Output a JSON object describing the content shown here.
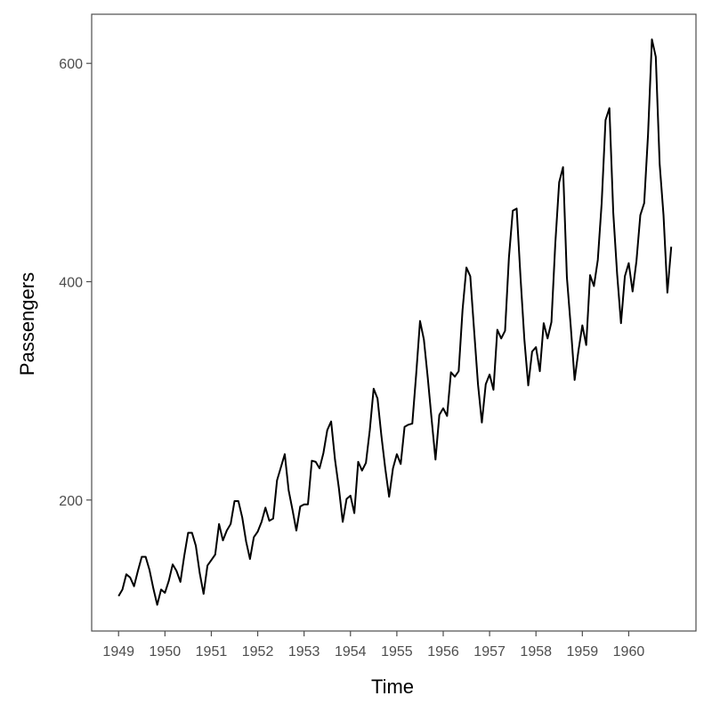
{
  "chart_data": {
    "type": "line",
    "title": "",
    "xlabel": "Time",
    "ylabel": "Passengers",
    "xlim": [
      1948.42,
      1961.45
    ],
    "ylim": [
      80,
      645
    ],
    "grid": false,
    "legend": "none",
    "line_color": "#000000",
    "x_ticks": [
      1949,
      1950,
      1951,
      1952,
      1953,
      1954,
      1955,
      1956,
      1957,
      1958,
      1959,
      1960
    ],
    "x_tick_labels": [
      "1949",
      "1950",
      "1951",
      "1952",
      "1953",
      "1954",
      "1955",
      "1956",
      "1957",
      "1958",
      "1959",
      "1960"
    ],
    "y_ticks": [
      200,
      400,
      600
    ],
    "y_tick_labels": [
      "200",
      "400",
      "600"
    ],
    "x_start": 1949,
    "x_step": 0.08333333,
    "series": [
      {
        "values": [
          112,
          118,
          132,
          129,
          121,
          135,
          148,
          148,
          136,
          119,
          104,
          118,
          115,
          126,
          141,
          135,
          125,
          149,
          170,
          170,
          158,
          133,
          114,
          140,
          145,
          150,
          178,
          163,
          172,
          178,
          199,
          199,
          184,
          162,
          146,
          166,
          171,
          180,
          193,
          181,
          183,
          218,
          230,
          242,
          209,
          191,
          172,
          194,
          196,
          196,
          236,
          235,
          229,
          243,
          264,
          272,
          237,
          211,
          180,
          201,
          204,
          188,
          235,
          227,
          234,
          264,
          302,
          293,
          259,
          229,
          203,
          229,
          242,
          233,
          267,
          269,
          270,
          315,
          364,
          347,
          312,
          274,
          237,
          278,
          284,
          277,
          317,
          313,
          318,
          374,
          413,
          405,
          355,
          306,
          271,
          306,
          315,
          301,
          356,
          348,
          355,
          422,
          465,
          467,
          404,
          347,
          305,
          336,
          340,
          318,
          362,
          348,
          363,
          435,
          491,
          505,
          404,
          359,
          310,
          337,
          360,
          342,
          406,
          396,
          420,
          472,
          548,
          559,
          463,
          407,
          362,
          405,
          417,
          391,
          419,
          461,
          472,
          535,
          622,
          606,
          508,
          461,
          390,
          432
        ]
      }
    ]
  }
}
